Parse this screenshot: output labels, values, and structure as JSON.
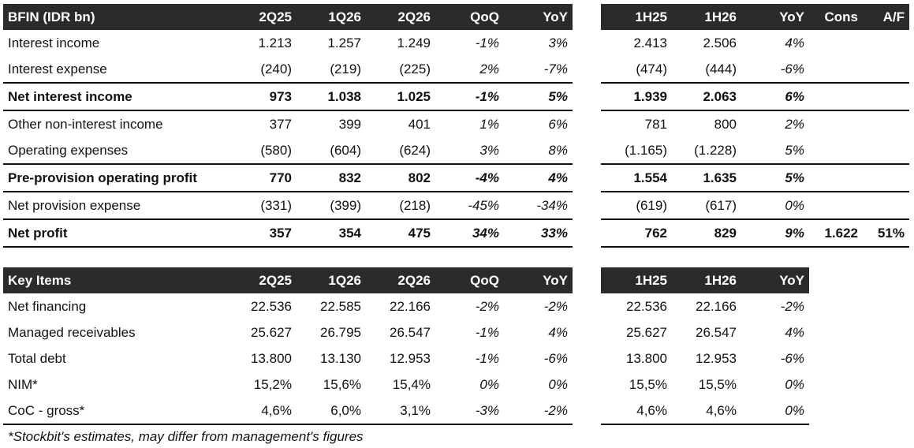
{
  "t1": {
    "headers": [
      "BFIN (IDR bn)",
      "2Q25",
      "1Q26",
      "2Q26",
      "QoQ",
      "YoY"
    ],
    "rows": [
      [
        "Interest income",
        "1.213",
        "1.257",
        "1.249",
        "-1%",
        "3%"
      ],
      [
        "Interest expense",
        "(240)",
        "(219)",
        "(225)",
        "2%",
        "-7%"
      ],
      [
        "Net interest income",
        "973",
        "1.038",
        "1.025",
        "-1%",
        "5%"
      ],
      [
        "Other non-interest income",
        "377",
        "399",
        "401",
        "1%",
        "6%"
      ],
      [
        "Operating expenses",
        "(580)",
        "(604)",
        "(624)",
        "3%",
        "8%"
      ],
      [
        "Pre-provision operating profit",
        "770",
        "832",
        "802",
        "-4%",
        "4%"
      ],
      [
        "Net provision expense",
        "(331)",
        "(399)",
        "(218)",
        "-45%",
        "-34%"
      ],
      [
        "Net profit",
        "357",
        "354",
        "475",
        "34%",
        "33%"
      ]
    ]
  },
  "t2": {
    "headers": [
      "1H25",
      "1H26",
      "YoY",
      "Cons",
      "A/F"
    ],
    "rows": [
      [
        "2.413",
        "2.506",
        "4%",
        "",
        ""
      ],
      [
        "(474)",
        "(444)",
        "-6%",
        "",
        ""
      ],
      [
        "1.939",
        "2.063",
        "6%",
        "",
        ""
      ],
      [
        "781",
        "800",
        "2%",
        "",
        ""
      ],
      [
        "(1.165)",
        "(1.228)",
        "5%",
        "",
        ""
      ],
      [
        "1.554",
        "1.635",
        "5%",
        "",
        ""
      ],
      [
        "(619)",
        "(617)",
        "0%",
        "",
        ""
      ],
      [
        "762",
        "829",
        "9%",
        "1.622",
        "51%"
      ]
    ]
  },
  "t3": {
    "headers": [
      "Key Items",
      "2Q25",
      "1Q26",
      "2Q26",
      "QoQ",
      "YoY"
    ],
    "rows": [
      [
        "Net financing",
        "22.536",
        "22.585",
        "22.166",
        "-2%",
        "-2%"
      ],
      [
        "Managed receivables",
        "25.627",
        "26.795",
        "26.547",
        "-1%",
        "4%"
      ],
      [
        "Total debt",
        "13.800",
        "13.130",
        "12.953",
        "-1%",
        "-6%"
      ],
      [
        "NIM*",
        "15,2%",
        "15,6%",
        "15,4%",
        "0%",
        "0%"
      ],
      [
        "CoC - gross*",
        "4,6%",
        "6,0%",
        "3,1%",
        "-3%",
        "-2%"
      ]
    ]
  },
  "t4": {
    "headers": [
      "1H25",
      "1H26",
      "YoY"
    ],
    "rows": [
      [
        "22.536",
        "22.166",
        "-2%"
      ],
      [
        "25.627",
        "26.547",
        "4%"
      ],
      [
        "13.800",
        "12.953",
        "-6%"
      ],
      [
        "15,5%",
        "15,5%",
        "0%"
      ],
      [
        "4,6%",
        "4,6%",
        "0%"
      ]
    ]
  },
  "footnote": "*Stockbit's estimates, may differ from management's figures"
}
